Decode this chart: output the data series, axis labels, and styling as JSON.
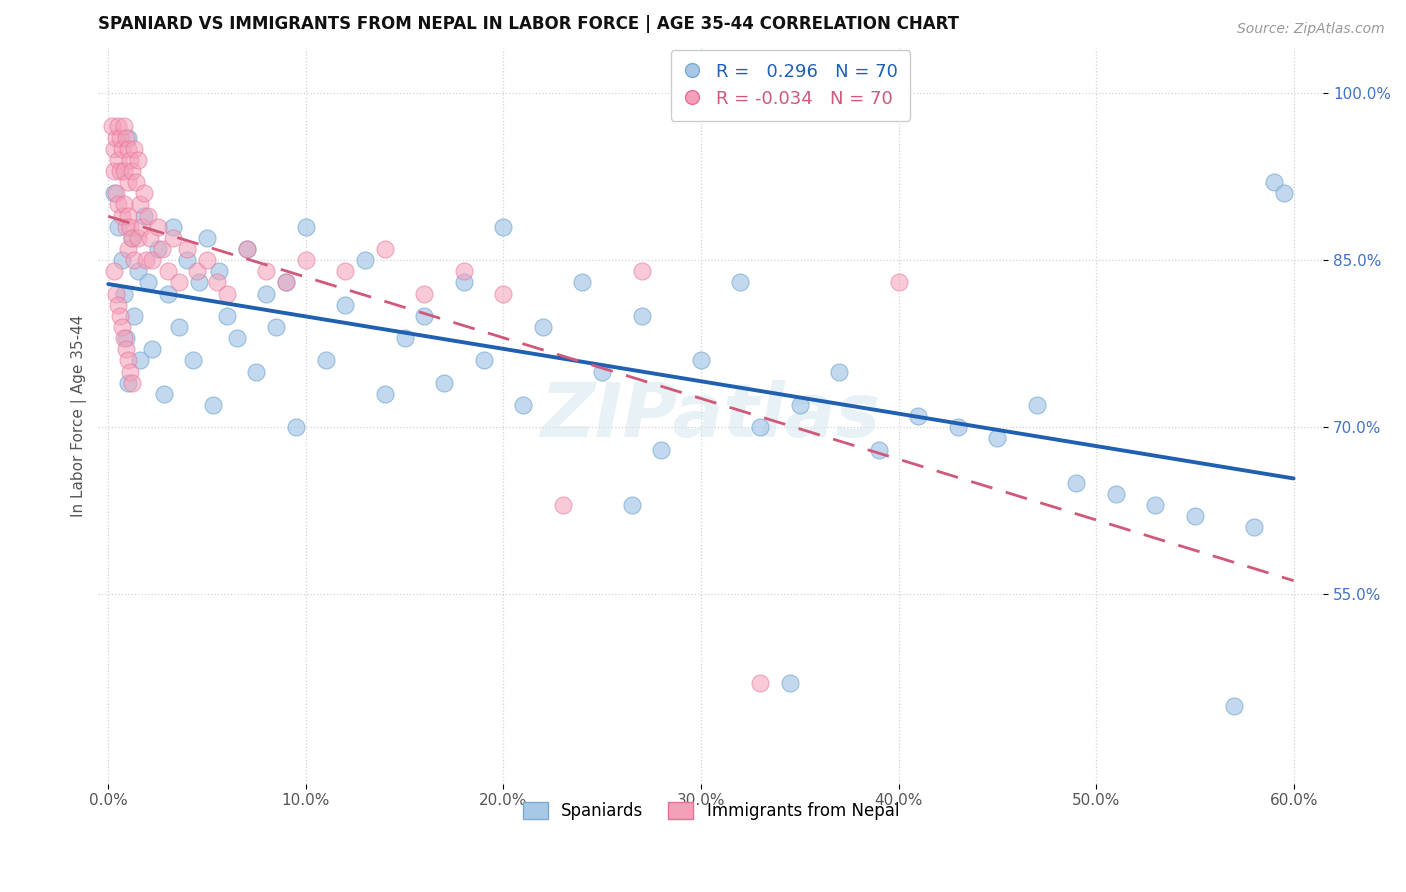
{
  "title": "SPANIARD VS IMMIGRANTS FROM NEPAL IN LABOR FORCE | AGE 35-44 CORRELATION CHART",
  "source_text": "Source: ZipAtlas.com",
  "ylabel": "In Labor Force | Age 35-44",
  "xlim": [
    -0.005,
    0.615
  ],
  "ylim": [
    0.38,
    1.04
  ],
  "xtick_vals": [
    0.0,
    0.1,
    0.2,
    0.3,
    0.4,
    0.5,
    0.6
  ],
  "xtick_labels": [
    "0.0%",
    "10.0%",
    "20.0%",
    "30.0%",
    "40.0%",
    "50.0%",
    "60.0%"
  ],
  "ytick_vals": [
    0.55,
    0.7,
    0.85,
    1.0
  ],
  "ytick_labels": [
    "55.0%",
    "70.0%",
    "85.0%",
    "100.0%"
  ],
  "blue_R": 0.296,
  "blue_N": 70,
  "pink_R": -0.034,
  "pink_N": 70,
  "blue_color": "#a8c8e8",
  "pink_color": "#f4a0b8",
  "blue_edge_color": "#7aaad0",
  "pink_edge_color": "#e87098",
  "blue_line_color": "#2060b0",
  "pink_line_color": "#d05878",
  "legend_entries": [
    "Spaniards",
    "Immigrants from Nepal"
  ],
  "watermark": "ZIPatlas",
  "blue_scatter_x": [
    0.003,
    0.005,
    0.007,
    0.008,
    0.009,
    0.01,
    0.01,
    0.012,
    0.013,
    0.015,
    0.016,
    0.018,
    0.02,
    0.022,
    0.025,
    0.028,
    0.03,
    0.033,
    0.036,
    0.04,
    0.043,
    0.046,
    0.05,
    0.053,
    0.056,
    0.06,
    0.065,
    0.07,
    0.075,
    0.08,
    0.085,
    0.09,
    0.095,
    0.1,
    0.11,
    0.12,
    0.13,
    0.14,
    0.15,
    0.16,
    0.17,
    0.18,
    0.19,
    0.2,
    0.21,
    0.22,
    0.24,
    0.25,
    0.27,
    0.28,
    0.3,
    0.32,
    0.33,
    0.35,
    0.37,
    0.39,
    0.41,
    0.43,
    0.45,
    0.47,
    0.49,
    0.51,
    0.53,
    0.55,
    0.57,
    0.58,
    0.59,
    0.595,
    0.345,
    0.265
  ],
  "blue_scatter_y": [
    0.91,
    0.88,
    0.85,
    0.82,
    0.78,
    0.96,
    0.74,
    0.87,
    0.8,
    0.84,
    0.76,
    0.89,
    0.83,
    0.77,
    0.86,
    0.73,
    0.82,
    0.88,
    0.79,
    0.85,
    0.76,
    0.83,
    0.87,
    0.72,
    0.84,
    0.8,
    0.78,
    0.86,
    0.75,
    0.82,
    0.79,
    0.83,
    0.7,
    0.88,
    0.76,
    0.81,
    0.85,
    0.73,
    0.78,
    0.8,
    0.74,
    0.83,
    0.76,
    0.88,
    0.72,
    0.79,
    0.83,
    0.75,
    0.8,
    0.68,
    0.76,
    0.83,
    0.7,
    0.72,
    0.75,
    0.68,
    0.71,
    0.7,
    0.69,
    0.72,
    0.65,
    0.64,
    0.63,
    0.62,
    0.45,
    0.61,
    0.92,
    0.91,
    0.47,
    0.63
  ],
  "pink_scatter_x": [
    0.002,
    0.003,
    0.003,
    0.004,
    0.004,
    0.005,
    0.005,
    0.005,
    0.006,
    0.006,
    0.007,
    0.007,
    0.008,
    0.008,
    0.008,
    0.009,
    0.009,
    0.01,
    0.01,
    0.01,
    0.01,
    0.011,
    0.011,
    0.012,
    0.012,
    0.013,
    0.013,
    0.014,
    0.015,
    0.015,
    0.016,
    0.017,
    0.018,
    0.019,
    0.02,
    0.021,
    0.022,
    0.025,
    0.027,
    0.03,
    0.033,
    0.036,
    0.04,
    0.045,
    0.05,
    0.055,
    0.06,
    0.07,
    0.08,
    0.09,
    0.1,
    0.12,
    0.14,
    0.16,
    0.18,
    0.2,
    0.23,
    0.27,
    0.33,
    0.4,
    0.003,
    0.004,
    0.005,
    0.006,
    0.007,
    0.008,
    0.009,
    0.01,
    0.011,
    0.012
  ],
  "pink_scatter_y": [
    0.97,
    0.95,
    0.93,
    0.96,
    0.91,
    0.97,
    0.94,
    0.9,
    0.96,
    0.93,
    0.95,
    0.89,
    0.97,
    0.93,
    0.9,
    0.96,
    0.88,
    0.95,
    0.92,
    0.89,
    0.86,
    0.94,
    0.88,
    0.93,
    0.87,
    0.95,
    0.85,
    0.92,
    0.94,
    0.87,
    0.9,
    0.88,
    0.91,
    0.85,
    0.89,
    0.87,
    0.85,
    0.88,
    0.86,
    0.84,
    0.87,
    0.83,
    0.86,
    0.84,
    0.85,
    0.83,
    0.82,
    0.86,
    0.84,
    0.83,
    0.85,
    0.84,
    0.86,
    0.82,
    0.84,
    0.82,
    0.63,
    0.84,
    0.47,
    0.83,
    0.84,
    0.82,
    0.81,
    0.8,
    0.79,
    0.78,
    0.77,
    0.76,
    0.75,
    0.74
  ]
}
